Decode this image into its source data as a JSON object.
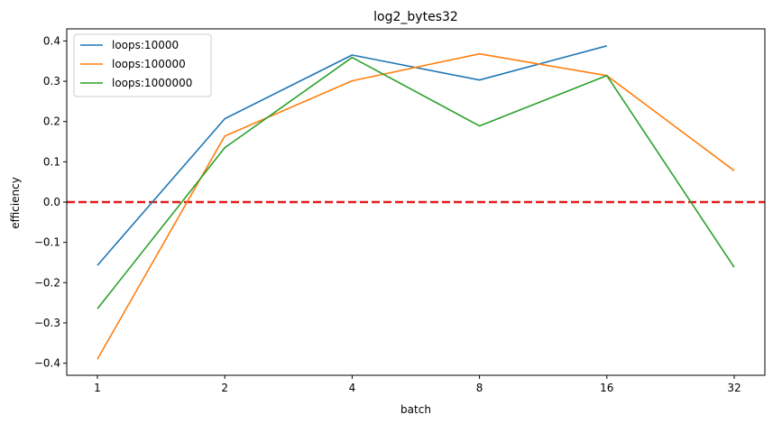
{
  "chart_data": {
    "type": "line",
    "title": "log2_bytes32",
    "xlabel": "batch",
    "ylabel": "efficiency",
    "categories": [
      "1",
      "2",
      "4",
      "8",
      "16",
      "32"
    ],
    "ylim": [
      -0.43,
      0.43
    ],
    "yticks": [
      -0.4,
      -0.3,
      -0.2,
      -0.1,
      0.0,
      0.1,
      0.2,
      0.3,
      0.4
    ],
    "ytick_labels": [
      "−0.4",
      "−0.3",
      "−0.2",
      "−0.1",
      "0.0",
      "0.1",
      "0.2",
      "0.3",
      "0.4"
    ],
    "grid": false,
    "legend_position": "top-left",
    "reference_line": {
      "y": 0.0,
      "color": "#e31a1c",
      "style": "dashed"
    },
    "series": [
      {
        "name": "loops:10000",
        "color": "#1f77b4",
        "values": [
          -0.157,
          0.207,
          0.365,
          0.303,
          0.388,
          null
        ]
      },
      {
        "name": "loops:100000",
        "color": "#ff7f0e",
        "values": [
          -0.39,
          0.164,
          0.301,
          0.368,
          0.314,
          0.078
        ]
      },
      {
        "name": "loops:1000000",
        "color": "#2ca02c",
        "values": [
          -0.265,
          0.135,
          0.359,
          0.189,
          0.314,
          -0.162
        ]
      }
    ]
  }
}
